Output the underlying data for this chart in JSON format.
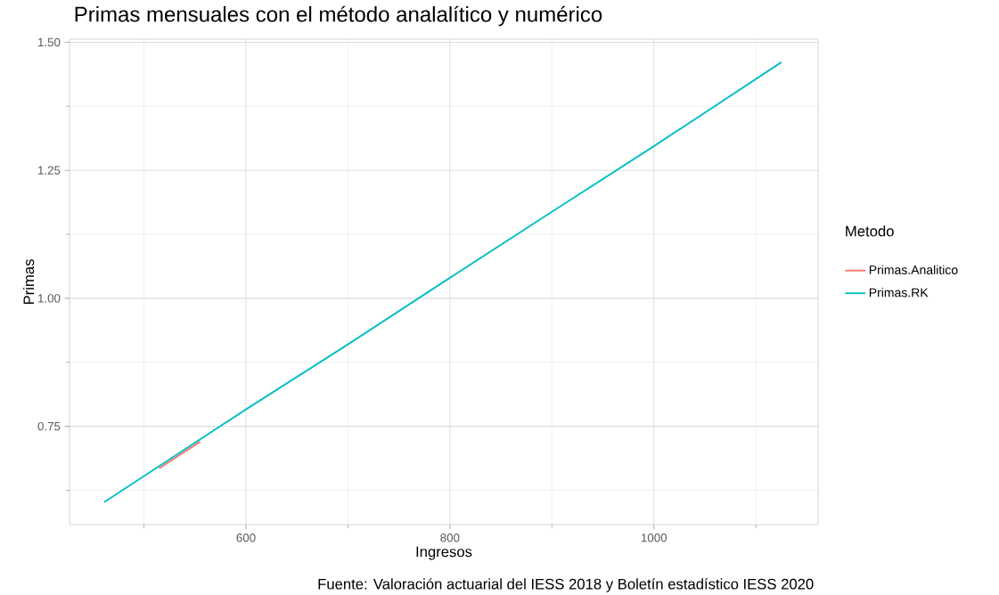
{
  "chart_data": {
    "type": "line",
    "title": "Primas mensuales con el método analalítico y numérico",
    "xlabel": "Ingresos",
    "ylabel": "Primas",
    "legend_title": "Metodo",
    "annotations": [
      "Fuente: Valoración actuarial del IESS 2018 y Boletín estadístico IESS 2020"
    ],
    "x": [
      461,
      600,
      700,
      800,
      900,
      1000,
      1125
    ],
    "series": [
      {
        "name": "Primas.Analitico",
        "color": "#f8766d",
        "x": [
          515,
          535,
          555
        ],
        "values": [
          0.668,
          0.694,
          0.72
        ]
      },
      {
        "name": "Primas.RK",
        "color": "#00bfc4",
        "values": [
          0.602,
          0.783,
          0.91,
          1.04,
          1.169,
          1.297,
          1.461
        ]
      }
    ],
    "xlim": [
      427,
      1161
    ],
    "ylim": [
      0.558,
      1.506
    ],
    "xticks": [
      600,
      800,
      1000
    ],
    "yticks": [
      {
        "value": 0.75,
        "label": "0.75"
      },
      {
        "value": 1.0,
        "label": "1.00"
      },
      {
        "value": 1.25,
        "label": "1.25"
      },
      {
        "value": 1.5,
        "label": "1.50"
      }
    ],
    "grid": true,
    "legend": "right"
  }
}
